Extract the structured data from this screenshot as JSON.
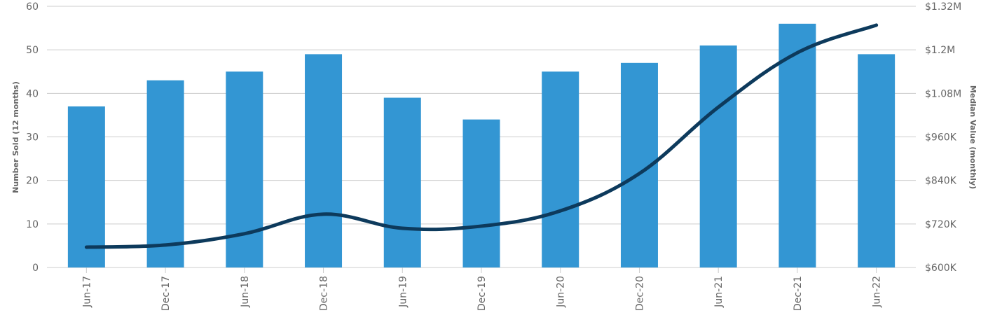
{
  "chart_data": {
    "type": "bar+line",
    "categories": [
      "Jun-17",
      "Dec-17",
      "Jun-18",
      "Dec-18",
      "Jun-19",
      "Dec-19",
      "Jun-20",
      "Dec-20",
      "Jun-21",
      "Dec-21",
      "Jun-22"
    ],
    "series": [
      {
        "type": "bar",
        "axis": "left",
        "color": "#3396d3",
        "values": [
          37,
          43,
          45,
          49,
          39,
          34,
          45,
          47,
          51,
          56,
          49
        ]
      },
      {
        "type": "line",
        "axis": "right",
        "color": "#0d3a5c",
        "values": [
          656000,
          662000,
          693000,
          747000,
          708000,
          714000,
          756000,
          859000,
          1042000,
          1192000,
          1268000
        ]
      }
    ],
    "ylabel": "Number Sold (12 months)",
    "ylabel_right": "Median Value (monthly)",
    "ylim": [
      0,
      60
    ],
    "ylim_right": [
      600000,
      1320000
    ],
    "yticks": [
      "0",
      "10",
      "20",
      "30",
      "40",
      "50",
      "60"
    ],
    "yticks_right": [
      "$600K",
      "$720K",
      "$840K",
      "$960K",
      "$1.08M",
      "$1.2M",
      "$1.32M"
    ],
    "grid": true,
    "legend": "none"
  }
}
